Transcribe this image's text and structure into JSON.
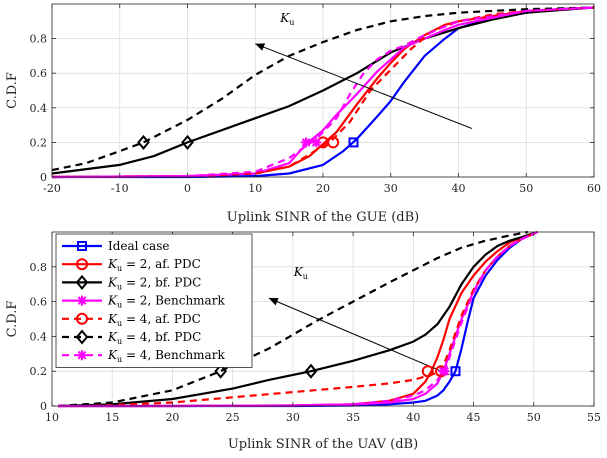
{
  "colors": {
    "ideal": "#0000ff",
    "red": "#ff0000",
    "black": "#000000",
    "magenta": "#ff00ff",
    "axis": "#262626"
  },
  "chart_data": [
    {
      "type": "line",
      "xlabel": "Uplink SINR of the GUE (dB)",
      "ylabel": "C.D.F",
      "xlim": [
        -20,
        60
      ],
      "ylim": [
        0,
        1
      ],
      "xticks": [
        -20,
        -10,
        0,
        10,
        20,
        30,
        40,
        50,
        60
      ],
      "xtick_labels": [
        "-20",
        "-10",
        "0",
        "10",
        "20",
        "30",
        "40",
        "50",
        "60"
      ],
      "yticks": [
        0,
        0.2,
        0.4,
        0.6,
        0.8
      ],
      "ytick_labels": [
        "0",
        "0.2",
        "0.4",
        "0.6",
        "0.8"
      ],
      "grid": true,
      "annotation": {
        "label": "K",
        "sub": "u",
        "arrow_from": [
          42,
          0.28
        ],
        "arrow_to": [
          10,
          0.77
        ]
      },
      "series": [
        {
          "key": "ideal",
          "color": "#0000ff",
          "dash": "solid",
          "marker": "square",
          "marker_at": [
            24.5,
            0.2
          ],
          "x": [
            -20,
            0,
            10,
            15,
            20,
            23,
            25,
            28,
            30,
            32,
            35,
            38,
            40,
            45,
            50,
            55,
            60
          ],
          "y": [
            0,
            0,
            0.005,
            0.02,
            0.07,
            0.15,
            0.22,
            0.35,
            0.44,
            0.55,
            0.7,
            0.8,
            0.86,
            0.92,
            0.95,
            0.97,
            0.98
          ]
        },
        {
          "key": "ku2_af",
          "color": "#ff0000",
          "dash": "solid",
          "marker": "circle",
          "marker_at": [
            20,
            0.2
          ],
          "x": [
            -20,
            0,
            10,
            15,
            18,
            20,
            22,
            25,
            28,
            30,
            32,
            35,
            38,
            40,
            45,
            50,
            60
          ],
          "y": [
            0,
            0.005,
            0.02,
            0.06,
            0.12,
            0.19,
            0.26,
            0.42,
            0.57,
            0.66,
            0.74,
            0.82,
            0.88,
            0.9,
            0.93,
            0.96,
            0.98
          ]
        },
        {
          "key": "ku2_bf",
          "color": "#000000",
          "dash": "solid",
          "marker": "diamond",
          "marker_at": [
            0,
            0.2
          ],
          "x": [
            -20,
            -10,
            -5,
            0,
            5,
            10,
            15,
            20,
            25,
            30,
            35,
            40,
            45,
            50,
            60
          ],
          "y": [
            0.02,
            0.07,
            0.12,
            0.2,
            0.27,
            0.34,
            0.41,
            0.5,
            0.6,
            0.72,
            0.8,
            0.86,
            0.91,
            0.95,
            0.98
          ]
        },
        {
          "key": "ku2_bm",
          "color": "#ff00ff",
          "dash": "solid",
          "marker": "asterisk",
          "marker_at": [
            17.5,
            0.2
          ],
          "x": [
            -20,
            0,
            10,
            15,
            17.5,
            20,
            22,
            25,
            28,
            30,
            32,
            35,
            38,
            40,
            45,
            50,
            60
          ],
          "y": [
            0,
            0.005,
            0.02,
            0.08,
            0.19,
            0.27,
            0.36,
            0.48,
            0.61,
            0.68,
            0.75,
            0.8,
            0.85,
            0.88,
            0.92,
            0.96,
            0.98
          ]
        },
        {
          "key": "ku4_af",
          "color": "#ff0000",
          "dash": "dashed",
          "marker": "circle",
          "marker_at": [
            21.5,
            0.2
          ],
          "x": [
            -20,
            0,
            10,
            15,
            18,
            21.5,
            24,
            27,
            30,
            33,
            36,
            40,
            45,
            50,
            60
          ],
          "y": [
            0,
            0.005,
            0.02,
            0.06,
            0.13,
            0.22,
            0.32,
            0.5,
            0.62,
            0.74,
            0.84,
            0.9,
            0.94,
            0.96,
            0.98
          ]
        },
        {
          "key": "ku4_bf",
          "color": "#000000",
          "dash": "dashed",
          "marker": "diamond",
          "marker_at": [
            -6.5,
            0.2
          ],
          "x": [
            -20,
            -15,
            -10,
            -6.5,
            -5,
            0,
            5,
            10,
            15,
            20,
            25,
            30,
            35,
            40,
            45,
            50,
            60
          ],
          "y": [
            0.04,
            0.08,
            0.15,
            0.2,
            0.23,
            0.33,
            0.45,
            0.59,
            0.7,
            0.78,
            0.85,
            0.9,
            0.93,
            0.95,
            0.96,
            0.97,
            0.98
          ]
        },
        {
          "key": "ku4_bm",
          "color": "#ff00ff",
          "dash": "dashed",
          "marker": "asterisk",
          "marker_at": [
            19,
            0.2
          ],
          "x": [
            -20,
            0,
            10,
            15,
            19,
            22,
            24,
            26,
            28,
            30,
            32,
            35,
            38,
            40,
            45,
            50,
            60
          ],
          "y": [
            0,
            0.005,
            0.03,
            0.11,
            0.22,
            0.34,
            0.48,
            0.6,
            0.68,
            0.73,
            0.76,
            0.82,
            0.87,
            0.9,
            0.93,
            0.96,
            0.98
          ]
        }
      ]
    },
    {
      "type": "line",
      "xlabel": "Uplink SINR of the UAV (dB)",
      "ylabel": "C.D.F",
      "xlim": [
        10,
        55
      ],
      "ylim": [
        0,
        1
      ],
      "xticks": [
        10,
        15,
        20,
        25,
        30,
        35,
        40,
        45,
        50,
        55
      ],
      "xtick_labels": [
        "10",
        "15",
        "20",
        "25",
        "30",
        "35",
        "40",
        "45",
        "50",
        "55"
      ],
      "yticks": [
        0,
        0.2,
        0.4,
        0.6,
        0.8
      ],
      "ytick_labels": [
        "0",
        "0.2",
        "0.4",
        "0.6",
        "0.8"
      ],
      "grid": true,
      "annotation": {
        "label": "K",
        "sub": "u",
        "arrow_from": [
          43,
          0.18
        ],
        "arrow_to": [
          28,
          0.62
        ]
      },
      "series": [
        {
          "key": "ideal",
          "color": "#0000ff",
          "dash": "solid",
          "marker": "square",
          "marker_at": [
            43.5,
            0.2
          ],
          "x": [
            10.5,
            20,
            30,
            35,
            38,
            40,
            41,
            42,
            42.5,
            43,
            43.5,
            44,
            44.5,
            45,
            46,
            47,
            48,
            49,
            50.3
          ],
          "y": [
            0,
            0,
            0,
            0.003,
            0.01,
            0.02,
            0.03,
            0.06,
            0.09,
            0.14,
            0.2,
            0.33,
            0.48,
            0.62,
            0.75,
            0.84,
            0.91,
            0.96,
            1.0
          ]
        },
        {
          "key": "ku2_af",
          "color": "#ff0000",
          "dash": "solid",
          "marker": "circle",
          "marker_at": [
            41.2,
            0.2
          ],
          "x": [
            10.5,
            20,
            30,
            35,
            38,
            40,
            41,
            41.5,
            42,
            42.5,
            43,
            44,
            45,
            46,
            47,
            48,
            49,
            50.3
          ],
          "y": [
            0,
            0,
            0.003,
            0.01,
            0.03,
            0.07,
            0.14,
            0.2,
            0.28,
            0.38,
            0.5,
            0.65,
            0.75,
            0.83,
            0.89,
            0.94,
            0.97,
            1.0
          ]
        },
        {
          "key": "ku2_bf",
          "color": "#000000",
          "dash": "solid",
          "marker": "diamond",
          "marker_at": [
            31.5,
            0.2
          ],
          "x": [
            10.5,
            15,
            20,
            25,
            28,
            31.5,
            35,
            38,
            40,
            41,
            42,
            43,
            44,
            45,
            46,
            47,
            48,
            49,
            50.3
          ],
          "y": [
            0,
            0.01,
            0.04,
            0.1,
            0.15,
            0.2,
            0.26,
            0.32,
            0.37,
            0.41,
            0.47,
            0.57,
            0.7,
            0.8,
            0.87,
            0.92,
            0.95,
            0.97,
            1.0
          ]
        },
        {
          "key": "ku2_bm",
          "color": "#ff00ff",
          "dash": "solid",
          "marker": "asterisk",
          "marker_at": [
            42.5,
            0.2
          ],
          "x": [
            10.5,
            20,
            30,
            35,
            38,
            40,
            41,
            42,
            42.5,
            43,
            44,
            45,
            46,
            47,
            48,
            49,
            50.3
          ],
          "y": [
            0,
            0,
            0.003,
            0.01,
            0.02,
            0.04,
            0.07,
            0.13,
            0.2,
            0.3,
            0.5,
            0.66,
            0.78,
            0.86,
            0.92,
            0.96,
            1.0
          ]
        },
        {
          "key": "ku4_af",
          "color": "#ff0000",
          "dash": "dashed",
          "marker": "circle",
          "marker_at": [
            42.3,
            0.2
          ],
          "x": [
            10.5,
            15,
            20,
            25,
            30,
            35,
            38,
            40,
            41,
            42,
            42.3,
            43,
            44,
            45,
            46,
            47,
            48,
            49,
            50.3
          ],
          "y": [
            0,
            0.005,
            0.02,
            0.05,
            0.08,
            0.11,
            0.13,
            0.15,
            0.17,
            0.19,
            0.2,
            0.32,
            0.52,
            0.67,
            0.78,
            0.86,
            0.92,
            0.96,
            1.0
          ]
        },
        {
          "key": "ku4_bf",
          "color": "#000000",
          "dash": "dashed",
          "marker": "diamond",
          "marker_at": [
            24,
            0.2
          ],
          "x": [
            10.5,
            15,
            20,
            24,
            28,
            30,
            32,
            35,
            38,
            40,
            42,
            44,
            46,
            48,
            49.5
          ],
          "y": [
            0,
            0.02,
            0.09,
            0.2,
            0.33,
            0.41,
            0.49,
            0.6,
            0.71,
            0.78,
            0.85,
            0.91,
            0.95,
            0.98,
            1.0
          ]
        },
        {
          "key": "ku4_bm",
          "color": "#ff00ff",
          "dash": "dashed",
          "marker": "asterisk",
          "marker_at": [
            42.6,
            0.2
          ],
          "x": [
            10.5,
            20,
            30,
            35,
            38,
            40,
            41,
            42,
            42.6,
            43,
            44,
            45,
            46,
            47,
            48,
            49,
            50.3
          ],
          "y": [
            0,
            0,
            0.003,
            0.01,
            0.03,
            0.06,
            0.09,
            0.15,
            0.2,
            0.28,
            0.48,
            0.65,
            0.78,
            0.86,
            0.92,
            0.96,
            1.0
          ]
        }
      ]
    }
  ],
  "legend": {
    "position": "upper-left of bottom panel",
    "entries": [
      {
        "key": "ideal",
        "prefix": "Ideal case",
        "sub": "",
        "suffix": "",
        "color": "#0000ff",
        "dash": "solid",
        "marker": "square"
      },
      {
        "key": "ku2_af",
        "prefix": "K",
        "sub": "u",
        "suffix": " = 2, af. PDC",
        "color": "#ff0000",
        "dash": "solid",
        "marker": "circle"
      },
      {
        "key": "ku2_bf",
        "prefix": "K",
        "sub": "u",
        "suffix": " = 2, bf. PDC",
        "color": "#000000",
        "dash": "solid",
        "marker": "diamond"
      },
      {
        "key": "ku2_bm",
        "prefix": "K",
        "sub": "u",
        "suffix": " = 2, Benchmark",
        "color": "#ff00ff",
        "dash": "solid",
        "marker": "asterisk"
      },
      {
        "key": "ku4_af",
        "prefix": "K",
        "sub": "u",
        "suffix": " = 4, af. PDC",
        "color": "#ff0000",
        "dash": "dashed",
        "marker": "circle"
      },
      {
        "key": "ku4_bf",
        "prefix": "K",
        "sub": "u",
        "suffix": " = 4, bf. PDC",
        "color": "#000000",
        "dash": "dashed",
        "marker": "diamond"
      },
      {
        "key": "ku4_bm",
        "prefix": "K",
        "sub": "u",
        "suffix": " = 4, Benchmark",
        "color": "#ff00ff",
        "dash": "dashed",
        "marker": "asterisk"
      }
    ]
  }
}
